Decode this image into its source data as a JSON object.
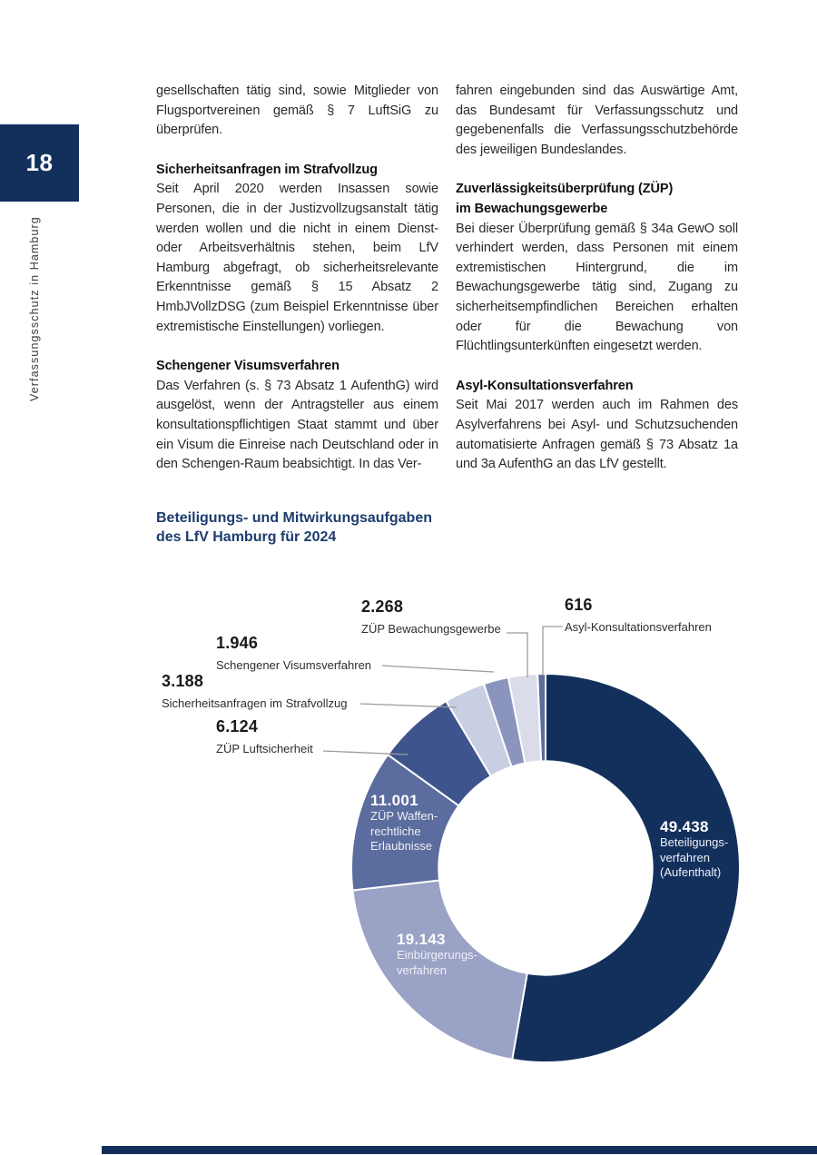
{
  "brand": {
    "navy": "#13305d",
    "leader_gray": "#9b9b9b"
  },
  "page": {
    "number": "18",
    "sidebar_vertical_text": "Verfassungsschutz in Hamburg"
  },
  "columns": {
    "left": [
      {
        "type": "p",
        "text": "gesellschaften tätig sind, sowie Mitglieder von Flugsportvereinen gemäß § 7 LuftSiG zu überprüfen."
      },
      {
        "type": "h",
        "text": "Sicherheitsanfragen im Strafvollzug"
      },
      {
        "type": "p",
        "text": "Seit April 2020 werden Insassen sowie Personen, die in der Justizvollzugsanstalt tätig werden wollen und die nicht in einem Dienst- oder Arbeitsverhältnis stehen, beim LfV Hamburg abgefragt, ob sicherheitsrelevante Erkenntnisse gemäß § 15 Absatz 2 HmbJVollzDSG (zum Beispiel Erkenntnisse über extremistische Einstellungen) vorliegen."
      },
      {
        "type": "h",
        "text": "Schengener Visumsverfahren"
      },
      {
        "type": "p",
        "text": "Das Verfahren (s. § 73 Absatz 1 AufenthG) wird ausgelöst, wenn der Antragsteller aus einem konsultationspflichtigen Staat stammt und über ein Visum die Einreise nach Deutschland oder in den Schengen-Raum beabsichtigt. In das Ver-"
      }
    ],
    "right": [
      {
        "type": "p",
        "text": "fahren eingebunden sind das Auswärtige Amt, das Bundesamt für Verfassungsschutz und gegebenenfalls die Verfassungsschutzbehörde des jeweiligen Bundeslandes."
      },
      {
        "type": "h",
        "text": "Zuverlässigkeitsüberprüfung (ZÜP)\nim Bewachungsgewerbe"
      },
      {
        "type": "p",
        "text": "Bei dieser Überprüfung gemäß § 34a GewO soll verhindert werden, dass Personen mit einem extremistischen Hintergrund, die im Bewachungsgewerbe tätig sind, Zugang zu sicherheitsempfindlichen Bereichen erhalten oder für die Bewachung von Flüchtlingsunterkünften eingesetzt werden."
      },
      {
        "type": "h",
        "text": "Asyl-Konsultationsverfahren"
      },
      {
        "type": "p",
        "text": "Seit Mai 2017 werden auch im Rahmen des Asylverfahrens bei Asyl- und Schutzsuchenden automatisierte Anfragen gemäß § 73 Absatz 1a und 3a AufenthG an das LfV gestellt."
      }
    ]
  },
  "chart_title": {
    "line1": "Beteiligungs- und Mitwirkungsaufgaben",
    "line2": "des LfV Hamburg für 2024"
  },
  "chart_data": {
    "type": "pie",
    "subtype": "donut",
    "title": "Beteiligungs- und Mitwirkungsaufgaben des LfV Hamburg für 2024",
    "start_angle_deg": 0,
    "direction": "clockwise",
    "inner_radius_ratio": 0.55,
    "total": 93724,
    "segments": [
      {
        "name": "Beteiligungsverfahren (Aufenthalt)",
        "value": 49438,
        "display": "49.438",
        "color": "#13305d",
        "label_placement": "inside",
        "label_lines": [
          "Beteiligungs-",
          "verfahren",
          "(Aufenthalt)"
        ]
      },
      {
        "name": "Einbürgerungsverfahren",
        "value": 19143,
        "display": "19.143",
        "color": "#9aa2c5",
        "label_placement": "inside",
        "label_lines": [
          "Einbürgerungs-",
          "verfahren"
        ]
      },
      {
        "name": "ZÜP Waffenrechtliche Erlaubnisse",
        "value": 11001,
        "display": "11.001",
        "color": "#5b6c9e",
        "label_placement": "inside",
        "label_lines": [
          "ZÜP Waffen-",
          "rechtliche",
          "Erlaubnisse"
        ]
      },
      {
        "name": "ZÜP Luftsicherheit",
        "value": 6124,
        "display": "6.124",
        "color": "#3d548d",
        "label_placement": "outside"
      },
      {
        "name": "Sicherheitsanfragen im Strafvollzug",
        "value": 3188,
        "display": "3.188",
        "color": "#c9cfe2",
        "label_placement": "outside"
      },
      {
        "name": "Schengener Visumsverfahren",
        "value": 1946,
        "display": "1.946",
        "color": "#8a94bd",
        "label_placement": "outside"
      },
      {
        "name": "ZÜP Bewachungsgewerbe",
        "value": 2268,
        "display": "2.268",
        "color": "#dadcea",
        "label_placement": "outside"
      },
      {
        "name": "Asyl-Konsultationsverfahren",
        "value": 616,
        "display": "616",
        "color": "#5d6c98",
        "label_placement": "outside"
      }
    ]
  }
}
